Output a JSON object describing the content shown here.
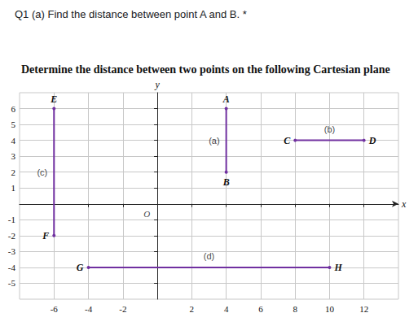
{
  "header": {
    "question": "Q1 (a) Find the distance between point A and B. *",
    "instruction": "Determine the distance between two points on the following Cartesian plane"
  },
  "chart_data": {
    "type": "line",
    "xlim": [
      -8,
      14
    ],
    "ylim": [
      -6,
      7
    ],
    "xticks": [
      -6,
      -4,
      -2,
      2,
      4,
      6,
      8,
      10,
      12
    ],
    "yticks": [
      -5,
      -4,
      -3,
      -2,
      -1,
      1,
      2,
      3,
      4,
      5,
      6
    ],
    "x_label": "x",
    "y_label": "y",
    "origin_label": "O",
    "grid": true,
    "color": "#7030a0",
    "marker": "circle",
    "points": [
      {
        "label": "A",
        "x": 4,
        "y": 6
      },
      {
        "label": "B",
        "x": 4,
        "y": 2
      },
      {
        "label": "C",
        "x": 8,
        "y": 4
      },
      {
        "label": "D",
        "x": 12,
        "y": 4
      },
      {
        "label": "E",
        "x": -6,
        "y": 6
      },
      {
        "label": "F",
        "x": -6,
        "y": -2
      },
      {
        "label": "G",
        "x": -4,
        "y": -4
      },
      {
        "label": "H",
        "x": 10,
        "y": -4
      }
    ],
    "segments": [
      {
        "label": "(a)",
        "from": "A",
        "to": "B"
      },
      {
        "label": "(b)",
        "from": "C",
        "to": "D"
      },
      {
        "label": "(c)",
        "from": "E",
        "to": "F"
      },
      {
        "label": "(d)",
        "from": "G",
        "to": "H"
      }
    ]
  }
}
